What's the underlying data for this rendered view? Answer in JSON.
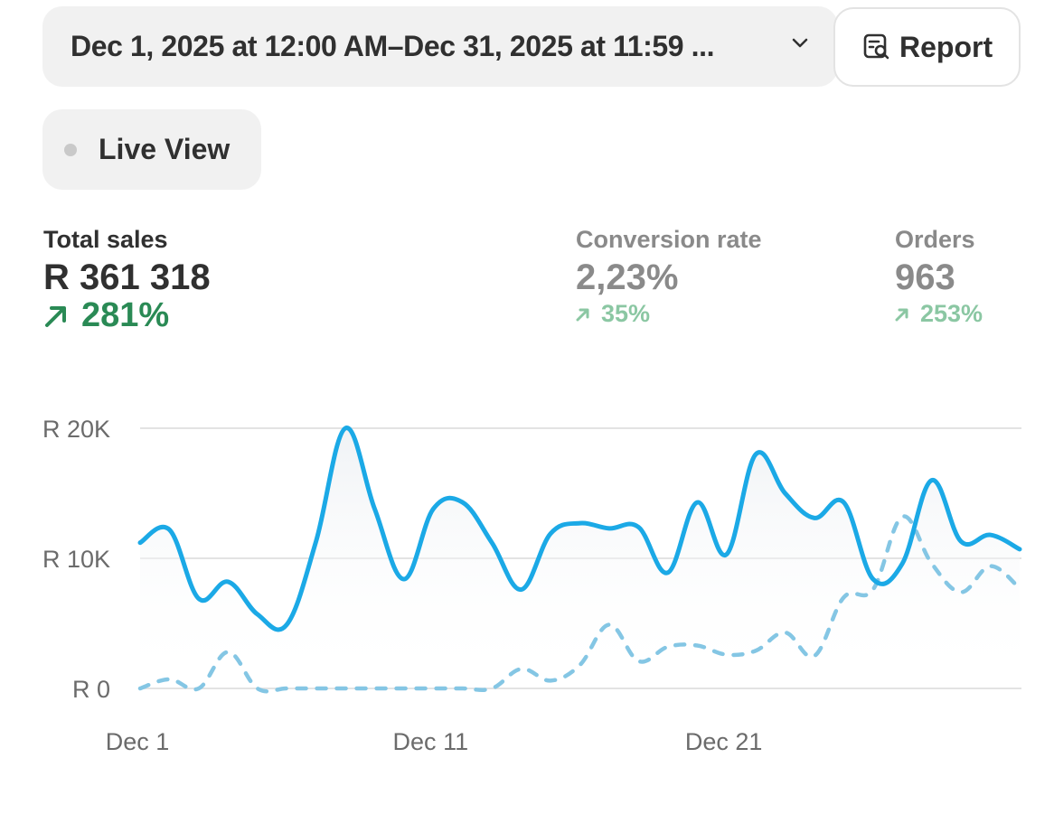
{
  "header": {
    "date_range": "Dec 1, 2025 at 12:00 AM–Dec 31, 2025 at 11:59 ...",
    "report_label": "Report"
  },
  "live_view": {
    "label": "Live View"
  },
  "metrics": [
    {
      "label": "Total sales",
      "value": "R 361 318",
      "change": "281%"
    },
    {
      "label": "Conversion rate",
      "value": "2,23%",
      "change": "35%"
    },
    {
      "label": "Orders",
      "value": "963",
      "change": "253%"
    }
  ],
  "colors": {
    "primary_line": "#1ba9e6",
    "comparison_line": "#84c6e4",
    "positive": "#2a8a55",
    "positive_muted": "#8bc7a3",
    "grid": "#e3e3e3"
  },
  "chart_data": {
    "type": "line",
    "x": [
      "Dec 1",
      "Dec 2",
      "Dec 3",
      "Dec 4",
      "Dec 5",
      "Dec 6",
      "Dec 7",
      "Dec 8",
      "Dec 9",
      "Dec 10",
      "Dec 11",
      "Dec 12",
      "Dec 13",
      "Dec 14",
      "Dec 15",
      "Dec 16",
      "Dec 17",
      "Dec 18",
      "Dec 19",
      "Dec 20",
      "Dec 21",
      "Dec 22",
      "Dec 23",
      "Dec 24",
      "Dec 25",
      "Dec 26",
      "Dec 27",
      "Dec 28",
      "Dec 29",
      "Dec 30",
      "Dec 31"
    ],
    "x_tick_labels": [
      "Dec 1",
      "Dec 11",
      "Dec 21"
    ],
    "y_tick_labels": [
      "R 0",
      "R 10K",
      "R 20K"
    ],
    "ylim": [
      0,
      20000
    ],
    "grid": true,
    "series": [
      {
        "style": "solid",
        "values": [
          11200,
          12200,
          6900,
          8200,
          5700,
          4900,
          11300,
          20000,
          13800,
          8400,
          13800,
          14300,
          11200,
          7600,
          11900,
          12700,
          12300,
          12400,
          8900,
          14300,
          10300,
          18000,
          15000,
          13100,
          14300,
          8400,
          9600,
          16000,
          11300,
          11800,
          10700
        ]
      },
      {
        "style": "dashed",
        "values": [
          0,
          700,
          0,
          2800,
          0,
          0,
          0,
          0,
          0,
          0,
          0,
          0,
          0,
          1500,
          600,
          1800,
          4900,
          2100,
          3200,
          3300,
          2600,
          2900,
          4300,
          2500,
          7000,
          7600,
          13200,
          9600,
          7400,
          9400,
          7700
        ]
      }
    ]
  }
}
